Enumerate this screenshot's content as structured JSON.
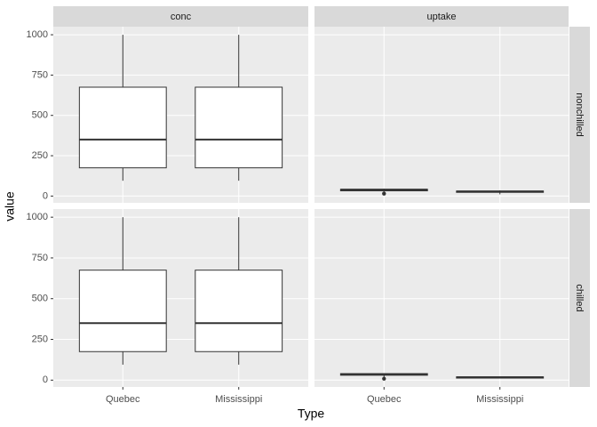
{
  "chart_data": {
    "type": "boxplot",
    "x_label": "Type",
    "y_label": "value",
    "categories": [
      "Quebec",
      "Mississippi"
    ],
    "col_facets": [
      "conc",
      "uptake"
    ],
    "row_facets": [
      "nonchilled",
      "chilled"
    ],
    "ylim": [
      -42,
      1050
    ],
    "yticks": [
      0,
      250,
      500,
      750,
      1000
    ],
    "grid": true,
    "box_fill": "#ffffff",
    "box_stroke": "#333333",
    "panels": [
      [
        {
          "boxes": [
            {
              "min": 95,
              "q1": 175,
              "median": 350,
              "q3": 675,
              "max": 1000,
              "outliers": []
            },
            {
              "min": 95,
              "q1": 175,
              "median": 350,
              "q3": 675,
              "max": 1000,
              "outliers": []
            }
          ]
        },
        {
          "boxes": [
            {
              "min": 27.3,
              "q1": 32.4,
              "median": 39.2,
              "q3": 42.1,
              "max": 45.5,
              "outliers": [
                16,
                13.6,
                16.2
              ]
            },
            {
              "min": 10.6,
              "q1": 23,
              "median": 28.3,
              "q3": 31.1,
              "max": 35.5,
              "outliers": []
            }
          ]
        }
      ],
      [
        {
          "boxes": [
            {
              "min": 95,
              "q1": 175,
              "median": 350,
              "q3": 675,
              "max": 1000,
              "outliers": []
            },
            {
              "min": 95,
              "q1": 175,
              "median": 350,
              "q3": 675,
              "max": 1000,
              "outliers": []
            }
          ]
        },
        {
          "boxes": [
            {
              "min": 14.2,
              "q1": 30,
              "median": 35,
              "q3": 40,
              "max": 42.4,
              "outliers": [
                9.3,
                7.7
              ]
            },
            {
              "min": 10.5,
              "q1": 12.5,
              "median": 17.9,
              "q3": 20.1,
              "max": 22.2,
              "outliers": []
            }
          ]
        }
      ]
    ]
  }
}
